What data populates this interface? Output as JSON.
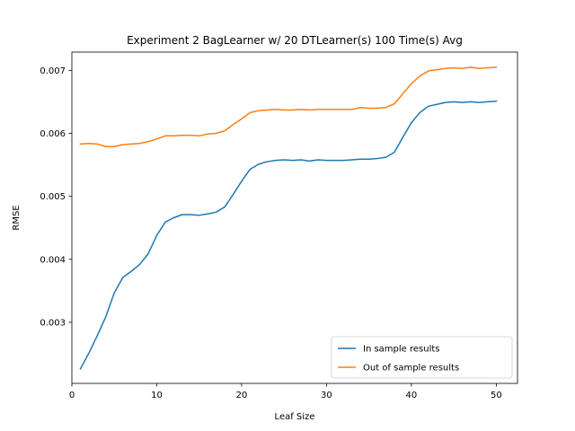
{
  "chart_data": {
    "type": "line",
    "title": "Experiment 2 BagLearner w/ 20 DTLearner(s) 100 Time(s) Avg",
    "xlabel": "Leaf Size",
    "ylabel": "RMSE",
    "xlim": [
      0,
      52.5
    ],
    "ylim": [
      0.00203,
      0.00729
    ],
    "xticks": [
      0,
      10,
      20,
      30,
      40,
      50
    ],
    "xtick_labels": [
      "0",
      "10",
      "20",
      "30",
      "40",
      "50"
    ],
    "yticks": [
      0.003,
      0.004,
      0.005,
      0.006,
      0.007
    ],
    "ytick_labels": [
      "0.003",
      "0.004",
      "0.005",
      "0.006",
      "0.007"
    ],
    "grid": false,
    "legend_position": "lower-right",
    "x": [
      1,
      2,
      3,
      4,
      5,
      6,
      7,
      8,
      9,
      10,
      11,
      12,
      13,
      14,
      15,
      16,
      17,
      18,
      19,
      20,
      21,
      22,
      23,
      24,
      25,
      26,
      27,
      28,
      29,
      30,
      31,
      32,
      33,
      34,
      35,
      36,
      37,
      38,
      39,
      40,
      41,
      42,
      43,
      44,
      45,
      46,
      47,
      48,
      49,
      50
    ],
    "series": [
      {
        "name": "In sample results",
        "color": "#1f77b4",
        "values": [
          0.00226,
          0.00251,
          0.00279,
          0.00309,
          0.00347,
          0.00371,
          0.00381,
          0.00392,
          0.00409,
          0.00438,
          0.00459,
          0.00466,
          0.00471,
          0.00471,
          0.0047,
          0.00472,
          0.00475,
          0.00483,
          0.00503,
          0.00524,
          0.00543,
          0.00551,
          0.00555,
          0.00557,
          0.00558,
          0.00557,
          0.00558,
          0.00556,
          0.00558,
          0.00557,
          0.00557,
          0.00557,
          0.00558,
          0.00559,
          0.00559,
          0.0056,
          0.00562,
          0.0057,
          0.00594,
          0.00617,
          0.00633,
          0.00643,
          0.00646,
          0.00649,
          0.0065,
          0.00649,
          0.0065,
          0.00649,
          0.0065,
          0.00651
        ]
      },
      {
        "name": "Out of sample results",
        "color": "#ff7f0e",
        "values": [
          0.00583,
          0.00584,
          0.00583,
          0.00579,
          0.00579,
          0.00582,
          0.00583,
          0.00584,
          0.00587,
          0.00591,
          0.00596,
          0.00596,
          0.00597,
          0.00597,
          0.00596,
          0.00599,
          0.006,
          0.00604,
          0.00614,
          0.00623,
          0.00633,
          0.00636,
          0.00637,
          0.00638,
          0.00637,
          0.00637,
          0.00638,
          0.00637,
          0.00638,
          0.00638,
          0.00638,
          0.00638,
          0.00638,
          0.00641,
          0.0064,
          0.0064,
          0.00641,
          0.00647,
          0.00663,
          0.00679,
          0.00691,
          0.00699,
          0.00701,
          0.00703,
          0.00704,
          0.00703,
          0.00705,
          0.00703,
          0.00704,
          0.00705
        ]
      }
    ]
  }
}
